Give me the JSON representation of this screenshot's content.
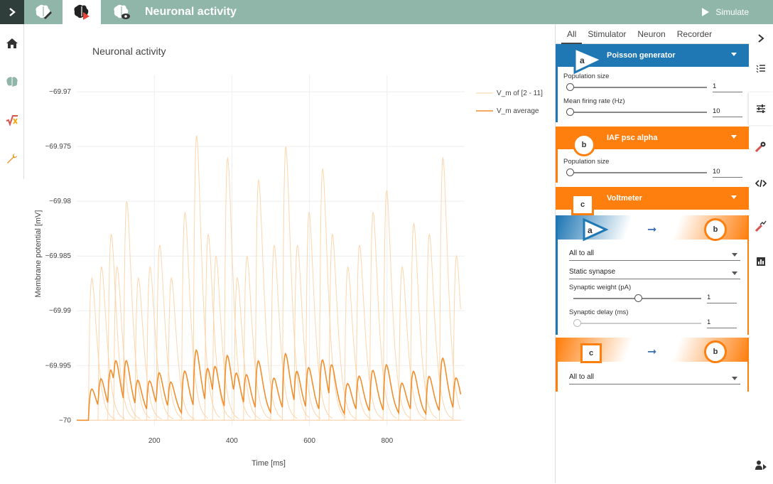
{
  "header": {
    "title": "Neuronal activity",
    "simulate_label": "Simulate"
  },
  "header_tabs": [
    {
      "icon": "brain-edit-icon"
    },
    {
      "icon": "brain-play-icon"
    },
    {
      "icon": "brain-eye-icon"
    }
  ],
  "left_nav": [
    {
      "icon": "home-icon"
    },
    {
      "icon": "brain-icon"
    },
    {
      "icon": "model-sqrt-icon"
    },
    {
      "icon": "wrench-icon"
    }
  ],
  "panel": {
    "tabs": [
      "All",
      "Stimulator",
      "Neuron",
      "Recorder"
    ],
    "nodes": [
      {
        "label": "a",
        "name": "Poisson generator",
        "color": "#1f77b4",
        "params": [
          {
            "label": "Population size",
            "value": "1",
            "fraction": 0.0
          },
          {
            "label": "Mean firing rate (Hz)",
            "value": "10",
            "fraction": 0.0
          }
        ]
      },
      {
        "label": "b",
        "name": "IAF psc alpha",
        "color": "#ff7f0e",
        "params": [
          {
            "label": "Population size",
            "value": "10",
            "fraction": 0.0
          }
        ]
      },
      {
        "label": "c",
        "name": "Voltmeter",
        "color": "#ff7f0e",
        "params": []
      }
    ],
    "connections": [
      {
        "source": "a",
        "target": "b",
        "rule": "All to all",
        "synapse": "Static synapse",
        "params": [
          {
            "label": "Synaptic weight (pA)",
            "value": "1",
            "fraction": 0.5
          },
          {
            "label": "Synaptic delay (ms)",
            "value": "1",
            "fraction": 0.0
          }
        ]
      },
      {
        "source": "c",
        "target": "b",
        "rule": "All to all"
      }
    ]
  },
  "right_strip": [
    {
      "icon": "chevron-right-icon"
    },
    {
      "icon": "list-check-icon"
    },
    {
      "icon": "sliders-icon"
    },
    {
      "icon": "tools-gear-icon"
    },
    {
      "icon": "code-icon"
    },
    {
      "icon": "chart-tools-icon"
    },
    {
      "icon": "bar-chart-icon"
    },
    {
      "icon": "user-play-icon"
    }
  ],
  "chart_data": {
    "type": "line",
    "title": "Neuronal activity",
    "xlabel": "Time [ms]",
    "ylabel": "Membrane potential [mV]",
    "xlim": [
      0,
      1000
    ],
    "ylim": [
      -70.0005,
      -69.9685
    ],
    "xticks": [
      200,
      400,
      600,
      800
    ],
    "yticks": [
      -69.97,
      -69.975,
      -69.98,
      -69.985,
      -69.99,
      -69.995,
      -70
    ],
    "legend_position": "top-right",
    "grid": true,
    "series": [
      {
        "name": "V_m of [2 - 11]",
        "color": "#fdd0a2",
        "spike_times": [
          30,
          55,
          80,
          95,
          120,
          150,
          180,
          205,
          235,
          270,
          300,
          330,
          350,
          380,
          405,
          430,
          460,
          500,
          530,
          560,
          590,
          625,
          650,
          690,
          720,
          755,
          790,
          830,
          860,
          900,
          935,
          970
        ],
        "spike_peaks": [
          -69.987,
          -69.986,
          -69.983,
          -69.986,
          -69.98,
          -69.987,
          -69.986,
          -69.984,
          -69.987,
          -69.981,
          -69.974,
          -69.983,
          -69.985,
          -69.976,
          -69.987,
          -69.985,
          -69.978,
          -69.984,
          -69.975,
          -69.984,
          -69.981,
          -69.977,
          -69.983,
          -69.986,
          -69.984,
          -69.981,
          -69.979,
          -69.986,
          -69.982,
          -69.983,
          -69.976,
          -69.985
        ]
      },
      {
        "name": "V_m average",
        "color": "#f28e2b"
      }
    ]
  }
}
